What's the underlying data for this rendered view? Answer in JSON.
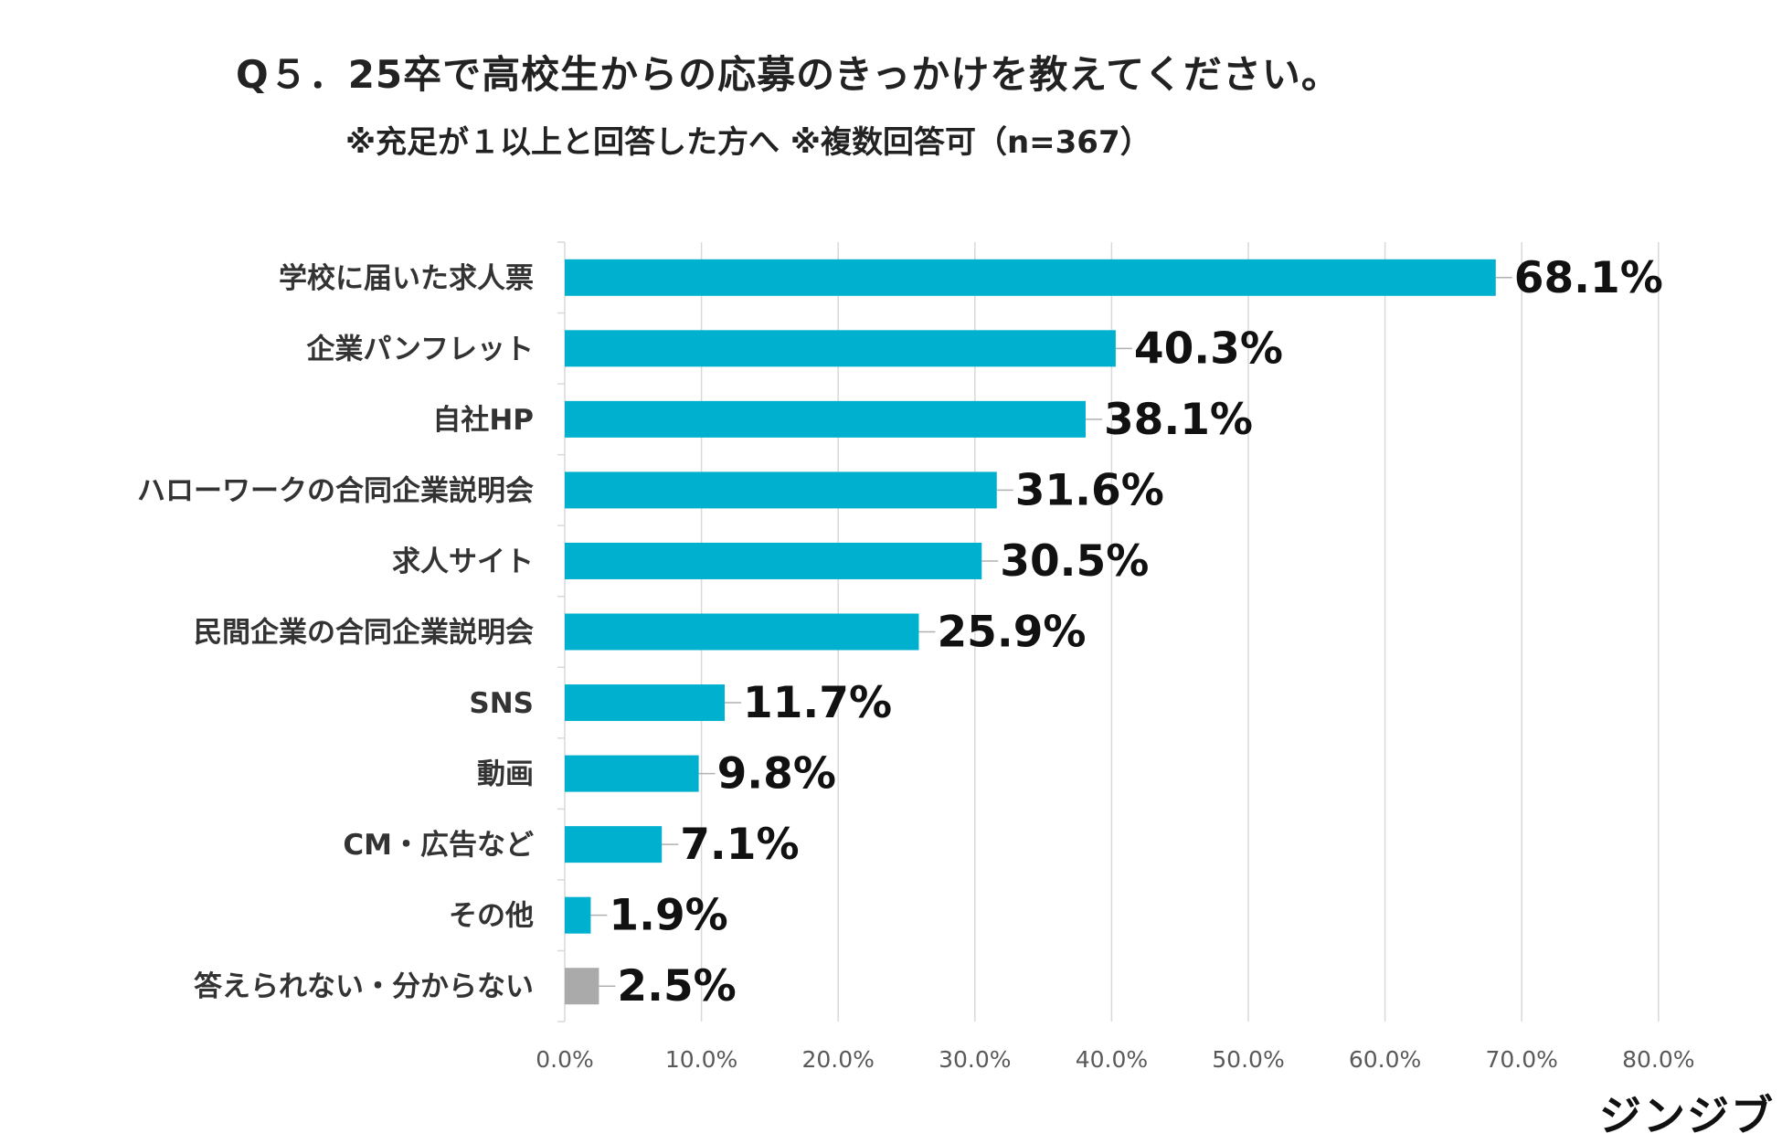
{
  "chart_data": {
    "type": "bar",
    "orientation": "horizontal",
    "title": "Q５．25卒で高校生からの応募のきっかけを教えてください。",
    "subtitle": "※充足が１以上と回答した方へ ※複数回答可（n=367）",
    "categories": [
      "学校に届いた求人票",
      "企業パンフレット",
      "自社HP",
      "ハローワークの合同企業説明会",
      "求人サイト",
      "民間企業の合同企業説明会",
      "SNS",
      "動画",
      "CM・広告など",
      "その他",
      "答えられない・分からない"
    ],
    "values": [
      68.1,
      40.3,
      38.1,
      31.6,
      30.5,
      25.9,
      11.7,
      9.8,
      7.1,
      1.9,
      2.5
    ],
    "value_labels": [
      "68.1%",
      "40.3%",
      "38.1%",
      "31.6%",
      "30.5%",
      "25.9%",
      "11.7%",
      "9.8%",
      "7.1%",
      "1.9%",
      "2.5%"
    ],
    "xlim": [
      0,
      80
    ],
    "x_ticks": [
      0,
      10,
      20,
      30,
      40,
      50,
      60,
      70,
      80
    ],
    "x_tick_labels": [
      "0.0%",
      "10.0%",
      "20.0%",
      "30.0%",
      "40.0%",
      "50.0%",
      "60.0%",
      "70.0%",
      "80.0%"
    ],
    "grid": true,
    "colors": {
      "bar": "#00b0cf",
      "bar_special": "#aaaaaa",
      "grid": "#d9d9d9",
      "tick_text": "#595959",
      "category_text": "#333333",
      "value_text": "#111111"
    },
    "special_bar_indices": [
      10
    ]
  },
  "logo": {
    "text": "ジンジブ"
  }
}
